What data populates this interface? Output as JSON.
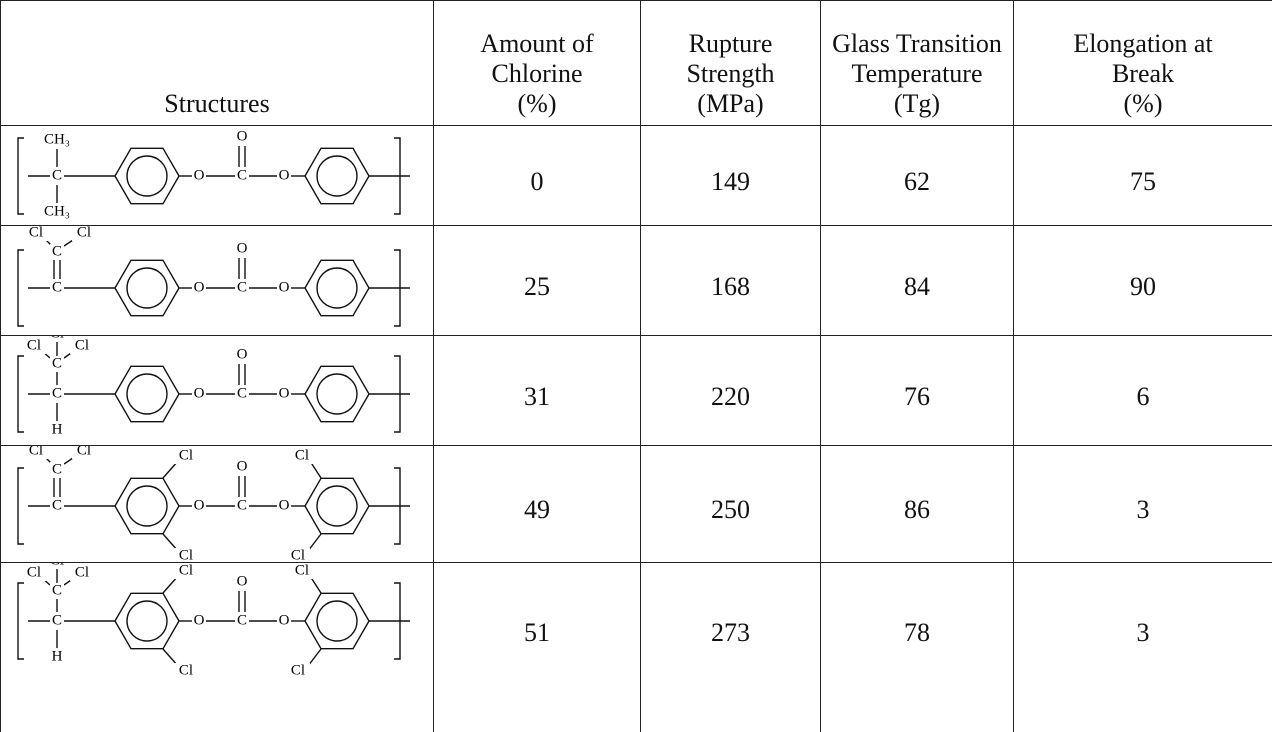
{
  "table": {
    "header": [
      [
        "Structures"
      ],
      [
        "Amount of",
        "Chlorine",
        "(%)"
      ],
      [
        "Rupture",
        "Strength",
        "(MPa)"
      ],
      [
        "Glass Transition",
        "Temperature",
        "(Tg)"
      ],
      [
        "Elongation at",
        "Break",
        "(%)"
      ]
    ],
    "rows": [
      {
        "structure": [
          "CH₃",
          "C",
          "CH₃",
          "O",
          "C",
          "O",
          "O"
        ],
        "values": [
          0,
          149,
          62,
          75
        ]
      },
      {
        "structure": [
          "Cl",
          "Cl",
          "C",
          "C",
          "O",
          "C",
          "O",
          "O"
        ],
        "values": [
          25,
          168,
          84,
          90
        ]
      },
      {
        "structure": [
          "Cl",
          "Cl",
          "Cl",
          "C",
          "C",
          "H",
          "O",
          "C",
          "O",
          "O"
        ],
        "values": [
          31,
          220,
          76,
          6
        ]
      },
      {
        "structure": [
          "Cl",
          "Cl",
          "C",
          "C",
          "O",
          "C",
          "O",
          "O",
          "Cl",
          "Cl",
          "Cl",
          "Cl"
        ],
        "values": [
          49,
          250,
          86,
          3
        ]
      },
      {
        "structure": [
          "Cl",
          "Cl",
          "Cl",
          "C",
          "C",
          "H",
          "O",
          "C",
          "O",
          "O",
          "Cl",
          "Cl",
          "Cl",
          "Cl"
        ],
        "values": [
          51,
          273,
          78,
          3
        ]
      }
    ]
  }
}
